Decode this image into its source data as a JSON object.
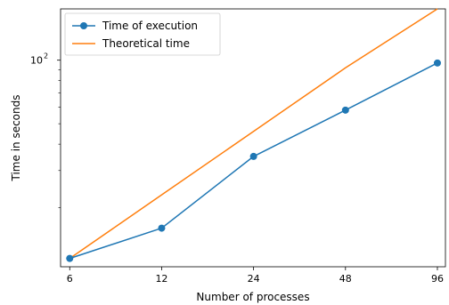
{
  "chart_data": {
    "type": "line",
    "title": "",
    "xlabel": "Number of processes",
    "ylabel": "Time in seconds",
    "x_scale": "log2",
    "y_scale": "log10",
    "x": [
      6,
      12,
      24,
      48,
      96
    ],
    "x_tick_labels": [
      "6",
      "12",
      "24",
      "48",
      "96"
    ],
    "xlim": [
      5.6,
      102
    ],
    "ylim": [
      10.5,
      175
    ],
    "y_major_ticks": [
      100
    ],
    "y_major_tick_labels": [
      "10",
      "2"
    ],
    "y_minor_ticks": [
      20,
      30,
      40,
      50,
      60,
      70,
      80,
      90
    ],
    "series": [
      {
        "name": "Time of execution",
        "values": [
          11.5,
          16.0,
          35.0,
          58.0,
          97.0
        ],
        "color": "#1f77b4",
        "marker": "circle"
      },
      {
        "name": "Theoretical time",
        "values": [
          11.5,
          23.0,
          46.0,
          92.0,
          184.0
        ],
        "color": "#ff7f0e",
        "marker": "none"
      }
    ],
    "legend_position": "top-left",
    "grid": false
  }
}
